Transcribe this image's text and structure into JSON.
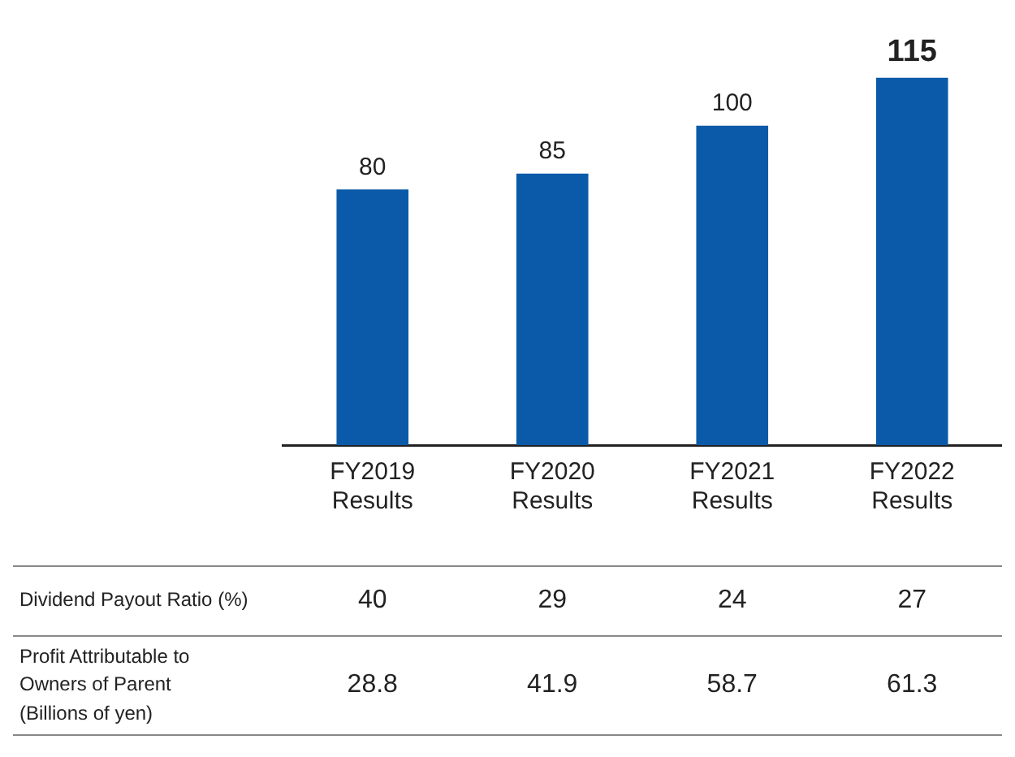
{
  "chart_data": {
    "type": "bar",
    "categories": [
      "FY2019\nResults",
      "FY2020\nResults",
      "FY2021\nResults",
      "FY2022\nResults"
    ],
    "values": [
      80,
      85,
      100,
      115
    ],
    "color": "#0b5aa9",
    "data_labels": true,
    "grid": false,
    "legend": false,
    "annotations": [
      "Dividend Payout Ratio (%)",
      "40",
      "29",
      "24",
      "27",
      "Profit Attributable to\nOwners of Parent\n(Billions of yen)",
      "28.8",
      "41.9",
      "58.7",
      "61.3"
    ]
  }
}
